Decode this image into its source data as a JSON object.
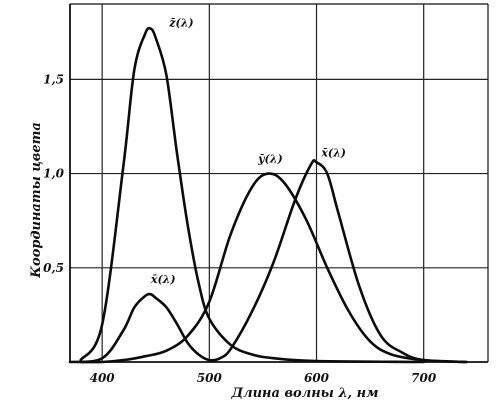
{
  "chart_data": {
    "type": "line",
    "title": "",
    "xlabel": "Длина волны λ, нм",
    "ylabel": "Координаты цвета",
    "xlim": [
      370,
      760
    ],
    "ylim": [
      0,
      1.9
    ],
    "x_ticks": [
      400,
      500,
      600,
      700
    ],
    "x_tick_labels": [
      "400",
      "500",
      "600",
      "700"
    ],
    "y_ticks": [
      0.5,
      1.0,
      1.5
    ],
    "y_tick_labels": [
      "0,5",
      "1,0",
      "1,5"
    ],
    "grid": true,
    "legend": "none",
    "series": [
      {
        "name": "z̄(λ)",
        "x": [
          380,
          400,
          420,
          430,
          440,
          445,
          450,
          460,
          470,
          480,
          490,
          500,
          520,
          540,
          560,
          600,
          700
        ],
        "y": [
          0.01,
          0.2,
          1.05,
          1.55,
          1.74,
          1.77,
          1.72,
          1.52,
          1.1,
          0.72,
          0.42,
          0.23,
          0.09,
          0.04,
          0.02,
          0.005,
          0.0
        ]
      },
      {
        "name": "ȳ(λ)",
        "x": [
          380,
          400,
          420,
          440,
          460,
          480,
          500,
          520,
          540,
          555,
          570,
          590,
          610,
          630,
          650,
          670,
          700,
          740
        ],
        "y": [
          0.0,
          0.0,
          0.01,
          0.03,
          0.06,
          0.14,
          0.32,
          0.68,
          0.93,
          1.0,
          0.95,
          0.76,
          0.5,
          0.27,
          0.11,
          0.04,
          0.01,
          0.0
        ]
      },
      {
        "name": "x̄(λ)",
        "x": [
          370,
          400,
          420,
          430,
          440,
          445,
          450,
          460,
          470,
          480,
          490,
          500,
          510,
          520,
          540,
          560,
          580,
          595,
          600,
          610,
          620,
          640,
          660,
          680,
          700,
          740
        ],
        "y": [
          0.0,
          0.02,
          0.17,
          0.29,
          0.35,
          0.36,
          0.34,
          0.29,
          0.2,
          0.1,
          0.04,
          0.01,
          0.02,
          0.07,
          0.27,
          0.53,
          0.86,
          1.05,
          1.06,
          1.0,
          0.8,
          0.4,
          0.14,
          0.05,
          0.01,
          0.0
        ]
      }
    ],
    "annotations": [
      {
        "text": "z̄(λ)",
        "x": 474,
        "y": 1.78
      },
      {
        "text": "ȳ(λ)",
        "x": 557,
        "y": 1.06
      },
      {
        "text": "x̄(λ)",
        "x": 616,
        "y": 1.09
      },
      {
        "text": "x̄(λ)",
        "x": 457,
        "y": 0.42
      }
    ]
  }
}
